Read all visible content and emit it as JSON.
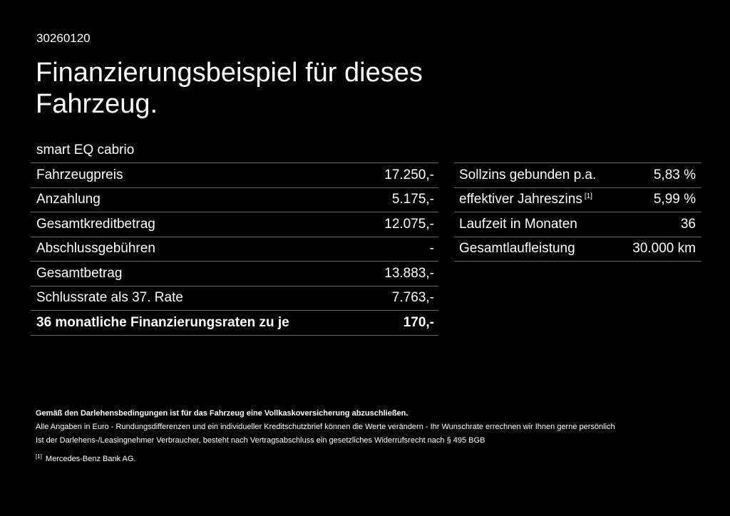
{
  "header": {
    "doc_id": "30260120",
    "title": "Finanzierungsbeispiel für dieses Fahrzeug.",
    "model": "smart EQ cabrio"
  },
  "financing_table": {
    "rows": [
      {
        "label": "Fahrzeugpreis",
        "value": "17.250,-"
      },
      {
        "label": "Anzahlung",
        "value": "5.175,-"
      },
      {
        "label": "Gesamtkreditbetrag",
        "value": "12.075,-"
      },
      {
        "label": "Abschlussgebühren",
        "value": "-"
      },
      {
        "label": "Gesamtbetrag",
        "value": "13.883,-"
      },
      {
        "label": "Schlussrate als 37. Rate",
        "value": "7.763,-"
      },
      {
        "label": "36 monatliche Finanzierungsraten zu je",
        "value": "170,-"
      }
    ]
  },
  "terms_table": {
    "rows": [
      {
        "label": "Sollzins gebunden p.a.",
        "value": "5,83 %"
      },
      {
        "label": "effektiver Jahreszins",
        "footnote": "[1]",
        "value": "5,99 %"
      },
      {
        "label": "Laufzeit in Monaten",
        "value": "36"
      },
      {
        "label": "Gesamtlaufleistung",
        "value": "30.000 km"
      }
    ]
  },
  "footnotes": {
    "insurance_notice": "Gemäß den Darlehensbedingungen ist für das Fahrzeug eine Vollkaskoversicherung abzuschließen.",
    "amounts_notice": "Alle Angaben in Euro - Rundungsdifferenzen und ein individueller Kreditschutzbrief können die Werte verändern - Ihr Wunschrate errechnen wir Ihnen gerne persönlich",
    "withdrawal_notice": "Ist der Darlehens-/Leasingnehmer Verbraucher, besteht nach Vertragsabschluss ein gesetzliches Widerrufsrecht nach § 495 BGB",
    "reference_marker": "[1]",
    "reference_text": "Mercedes-Benz Bank AG."
  }
}
